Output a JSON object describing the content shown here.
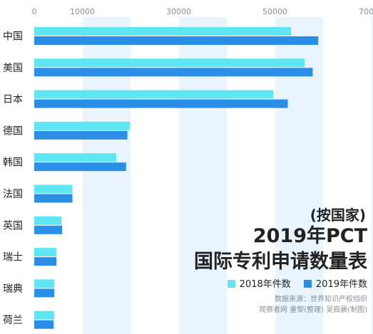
{
  "chart_data": {
    "type": "bar",
    "orientation": "horizontal",
    "subtitle": "(按国家)",
    "title": "2019年PCT国际专利申请数量表",
    "title_lines": [
      "2019年PCT",
      "国际专利申请数量表"
    ],
    "categories": [
      "中国",
      "美国",
      "日本",
      "德国",
      "韩国",
      "法国",
      "英国",
      "瑞士",
      "瑞典",
      "荷兰"
    ],
    "series": [
      {
        "name": "2018年件数",
        "color": "#5ee6f2",
        "values": [
          53345,
          56142,
          49702,
          19883,
          17014,
          7914,
          5641,
          4568,
          4162,
          4138
        ]
      },
      {
        "name": "2019年件数",
        "color": "#2a8ee6",
        "values": [
          58990,
          57840,
          52660,
          19353,
          19085,
          7934,
          5786,
          4610,
          4185,
          4011
        ]
      }
    ],
    "x_ticks": [
      0,
      10000,
      30000,
      50000,
      70000
    ],
    "x_tick_labels": [
      "0",
      "10000",
      "30000",
      "50000",
      "70000"
    ],
    "xlim": [
      0,
      70000
    ],
    "legend_position": "bottom-right",
    "grid": false,
    "band_color": "#eaf4fc"
  },
  "source_lines": [
    "数据来源：世界知识产权组织",
    "观察者网 童黎(整理) 吴辰晨(制图)"
  ]
}
